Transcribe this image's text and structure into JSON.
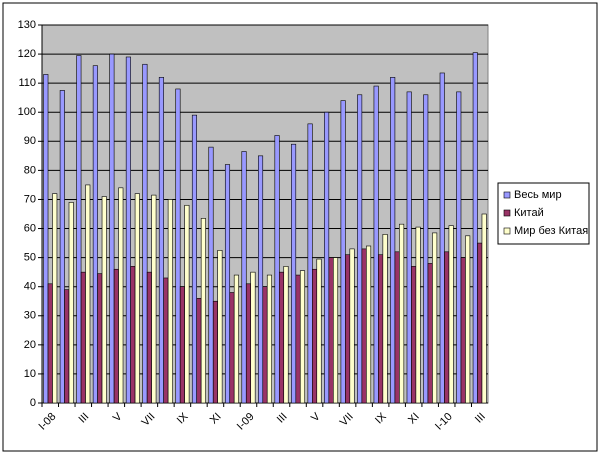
{
  "chart_data": {
    "type": "bar",
    "categories": [
      "I-08",
      null,
      "III",
      null,
      "V",
      null,
      "VII",
      null,
      "IX",
      null,
      "XI",
      null,
      "I-09",
      null,
      "III",
      null,
      "V",
      null,
      "VII",
      null,
      "IX",
      null,
      "XI",
      null,
      "I-10",
      null,
      "III"
    ],
    "series": [
      {
        "name": "Весь мир",
        "color": "#9999ff",
        "values": [
          113,
          107.5,
          119.5,
          116,
          120,
          119,
          116.5,
          112,
          108,
          99,
          88,
          82,
          86.5,
          85,
          92,
          89,
          96,
          100,
          104,
          106,
          109,
          112,
          107,
          106,
          113.5,
          107,
          120.5
        ]
      },
      {
        "name": "Китай",
        "color": "#993366",
        "values": [
          41,
          39,
          45,
          44.5,
          46,
          47,
          45,
          43,
          40,
          36,
          35,
          38,
          41,
          40,
          45,
          44,
          46,
          50,
          51,
          53,
          51,
          52,
          47,
          48,
          52,
          50,
          55
        ]
      },
      {
        "name": "Мир без Китая",
        "color": "#ffffcc",
        "values": [
          72,
          69,
          75,
          71,
          74,
          72,
          71.5,
          70,
          68,
          63.5,
          52.5,
          44,
          45,
          44,
          47,
          45.5,
          49.5,
          50,
          53,
          54,
          58,
          61.5,
          60.5,
          58.5,
          61,
          57.5,
          65
        ]
      }
    ],
    "ylim": [
      0,
      130
    ],
    "yticks": [
      0,
      10,
      20,
      30,
      40,
      50,
      60,
      70,
      80,
      90,
      100,
      110,
      120,
      130
    ],
    "grid": true,
    "legend": "right"
  }
}
